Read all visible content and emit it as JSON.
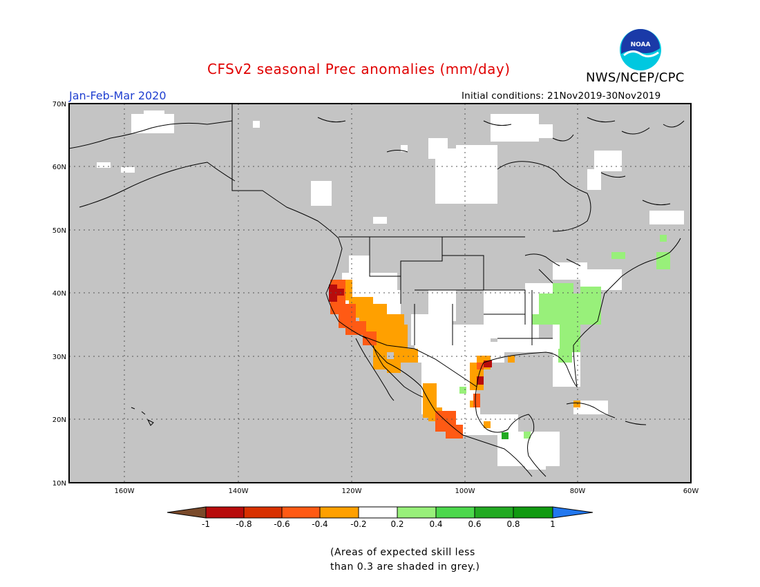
{
  "title": "CFSv2 seasonal Prec anomalies (mm/day)",
  "organization": "NWS/NCEP/CPC",
  "logo_text": "NOAA",
  "period": "Jan-Feb-Mar 2020",
  "initial_conditions": "Initial conditions: 21Nov2019-30Nov2019",
  "lat_labels": [
    "70N",
    "60N",
    "50N",
    "40N",
    "30N",
    "20N",
    "10N"
  ],
  "lon_labels": [
    "160W",
    "140W",
    "120W",
    "100W",
    "80W",
    "60W"
  ],
  "legend": {
    "tick_labels": [
      "-1",
      "-0.8",
      "-0.6",
      "-0.4",
      "-0.2",
      "0.2",
      "0.4",
      "0.6",
      "0.8",
      "1"
    ],
    "colors": [
      "#7a4a2a",
      "#b80c0c",
      "#d83000",
      "#ff5a14",
      "#ffa000",
      "#ffffff",
      "#98f07a",
      "#4cd84c",
      "#22aa22",
      "#119a11",
      "#2277ee"
    ]
  },
  "note_lines": [
    "(Areas of expected skill less",
    "than 0.3 are shaded in grey.)"
  ],
  "map_colors": {
    "grey": "#c4c4c4",
    "white": "#ffffff",
    "ocean_boundary": "#000000"
  }
}
